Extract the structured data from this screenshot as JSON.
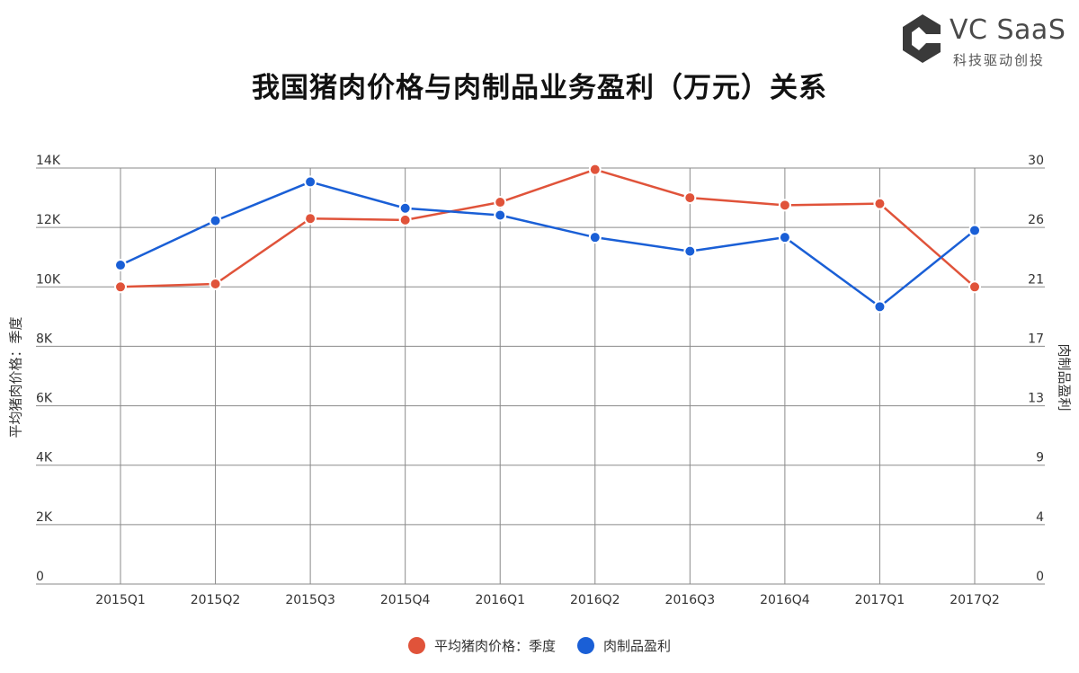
{
  "title": "我国猪肉价格与肉制品业务盈利（万元）关系",
  "logo": {
    "brand": "VC SaaS",
    "slogan": "科技驱动创投",
    "mark_color": "#3a3a3a"
  },
  "legend": [
    {
      "name": "平均猪肉价格：季度",
      "color": "#e0533a"
    },
    {
      "name": "肉制品盈利",
      "color": "#1a5fd6"
    }
  ],
  "chart_data": {
    "type": "line",
    "title": "我国猪肉价格与肉制品业务盈利（万元）关系",
    "categories": [
      "2015Q1",
      "2015Q2",
      "2015Q3",
      "2015Q4",
      "2016Q1",
      "2016Q2",
      "2016Q3",
      "2016Q4",
      "2017Q1",
      "2017Q2"
    ],
    "y_left": {
      "label": "平均猪肉价格：季度",
      "range": [
        0,
        14000
      ],
      "ticks": [
        0,
        2000,
        4000,
        6000,
        8000,
        10000,
        12000,
        14000
      ],
      "tick_labels": [
        "0",
        "2K",
        "4K",
        "6K",
        "8K",
        "10K",
        "12K",
        "14K"
      ]
    },
    "y_right": {
      "label": "肉制品盈利",
      "range": [
        0,
        30
      ],
      "tick_labels": [
        "0",
        "4",
        "9",
        "13",
        "17",
        "21",
        "26",
        "30"
      ]
    },
    "series": [
      {
        "name": "平均猪肉价格：季度",
        "axis": "left",
        "color": "#e0533a",
        "values": [
          10000,
          10100,
          12300,
          12250,
          12850,
          13950,
          13000,
          12750,
          12800,
          10000
        ]
      },
      {
        "name": "肉制品盈利",
        "axis": "right",
        "color": "#1a5fd6",
        "values": [
          23.0,
          26.2,
          29.0,
          27.1,
          26.6,
          25.0,
          24.0,
          25.0,
          20.0,
          25.5
        ]
      }
    ],
    "grid": true,
    "legend_position": "bottom"
  }
}
